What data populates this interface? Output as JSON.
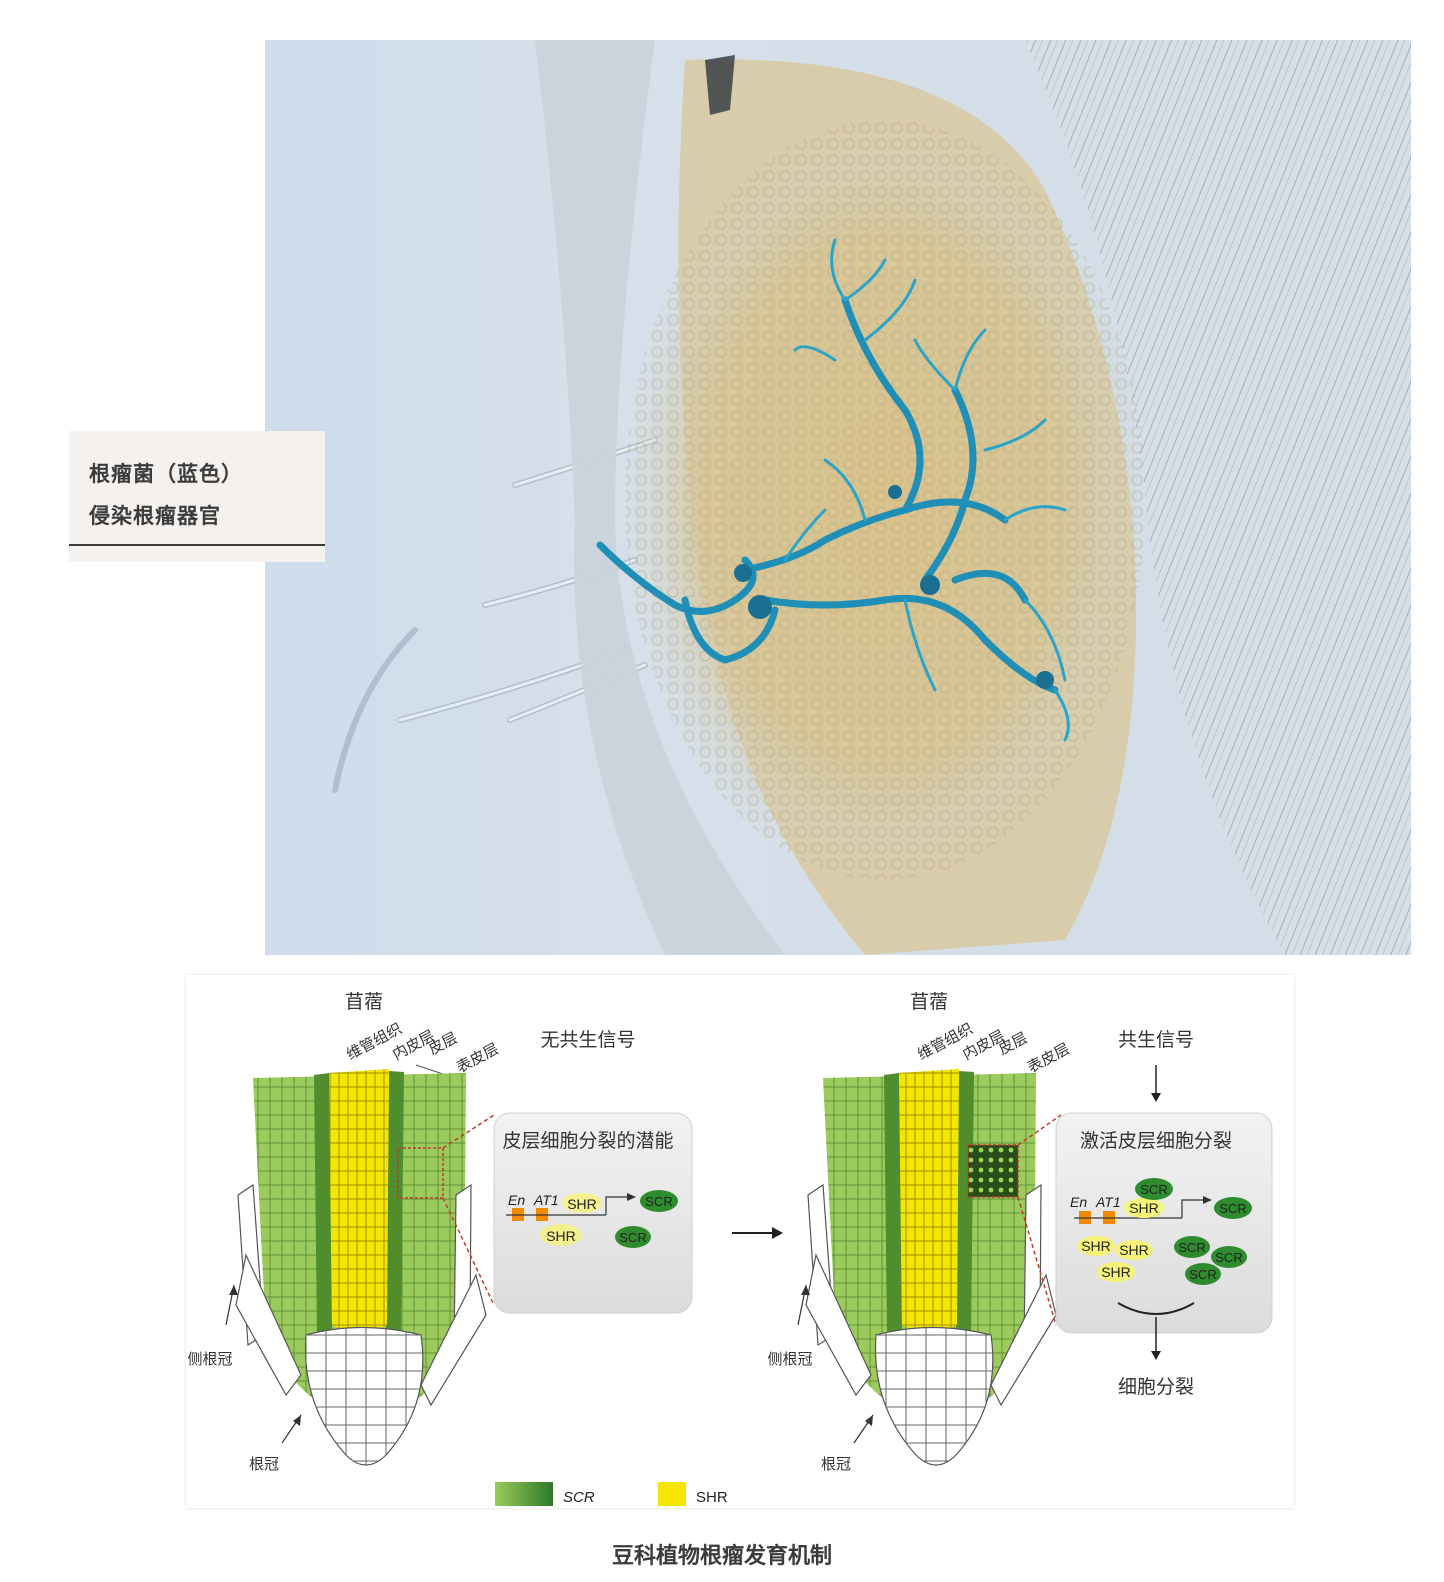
{
  "micrograph": {
    "label_line1": "根瘤菌（蓝色）",
    "label_line2": "侵染根瘤器官"
  },
  "diagram": {
    "left_panel": {
      "species": "苜蓿",
      "tissue_vascular": "维管组织",
      "tissue_endodermis": "内皮层",
      "tissue_cortex": "皮层",
      "tissue_epidermis": "表皮层",
      "signal": "无共生信号",
      "box_title": "皮层细胞分裂的潜能",
      "gene_en": "En",
      "gene_at1": "AT1",
      "lateral_root_cap": "侧根冠",
      "root_cap": "根冠",
      "shr_labels": [
        "SHR",
        "SHR"
      ],
      "scr_labels": [
        "SCR",
        "SCR"
      ]
    },
    "right_panel": {
      "species": "苜蓿",
      "tissue_vascular": "维管组织",
      "tissue_endodermis": "内皮层",
      "tissue_cortex": "皮层",
      "tissue_epidermis": "表皮层",
      "signal": "共生信号",
      "box_title": "激活皮层细胞分裂",
      "gene_en": "En",
      "gene_at1": "AT1",
      "result": "细胞分裂",
      "lateral_root_cap": "侧根冠",
      "root_cap": "根冠",
      "shr_labels": [
        "SHR",
        "SHR",
        "SHR",
        "SHR"
      ],
      "scr_labels": [
        "SCR",
        "SCR",
        "SCR",
        "SCR",
        "SCR"
      ]
    },
    "legend": {
      "scr": "SCR",
      "shr": "SHR"
    },
    "colors": {
      "scr_green": "#2e8b2e",
      "shr_yellow": "#f5e600",
      "root_light_green": "#9acb5c",
      "root_dark_green": "#4a8a2c",
      "bacteria_blue": "#1f8fb8",
      "promoter_orange": "#f08a00"
    }
  },
  "caption": "豆科植物根瘤发育机制"
}
